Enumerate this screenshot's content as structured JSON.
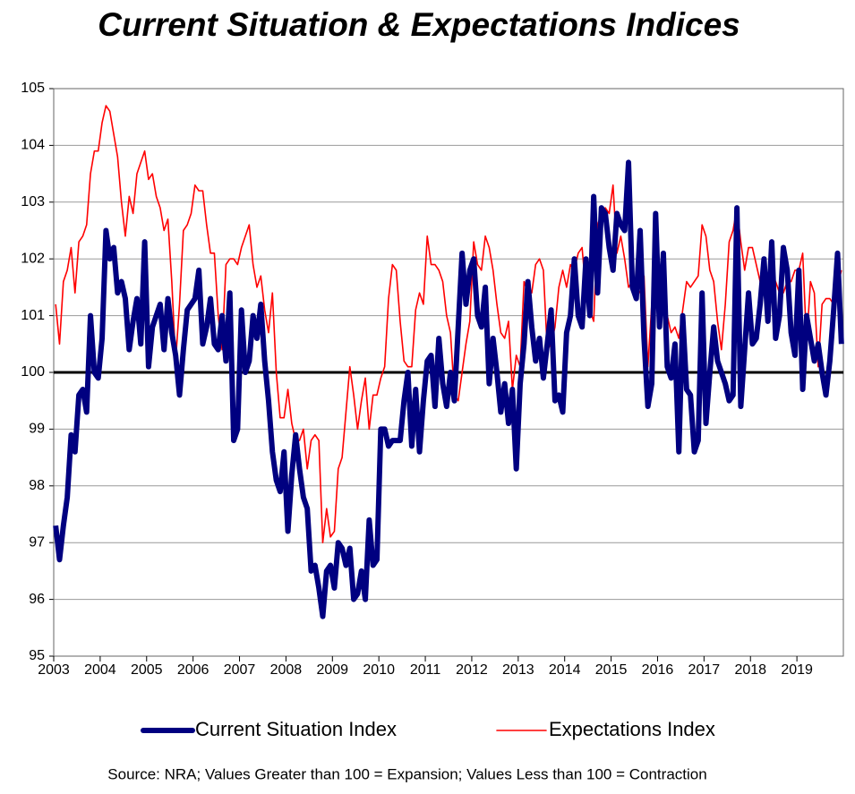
{
  "chart_data": {
    "type": "line",
    "title": "Current Situation & Expectations Indices",
    "source": "Source: NRA; Values Greater than 100 = Expansion; Values Less than 100 = Contraction",
    "categories": [
      "2003",
      null,
      null,
      null,
      null,
      null,
      null,
      null,
      null,
      null,
      null,
      null,
      "2004",
      null,
      null,
      null,
      null,
      null,
      null,
      null,
      null,
      null,
      null,
      null,
      "2005",
      null,
      null,
      null,
      null,
      null,
      null,
      null,
      null,
      null,
      null,
      null,
      "2006",
      null,
      null,
      null,
      null,
      null,
      null,
      null,
      null,
      null,
      null,
      null,
      "2007",
      null,
      null,
      null,
      null,
      null,
      null,
      null,
      null,
      null,
      null,
      null,
      "2008",
      null,
      null,
      null,
      null,
      null,
      null,
      null,
      null,
      null,
      null,
      null,
      "2009",
      null,
      null,
      null,
      null,
      null,
      null,
      null,
      null,
      null,
      null,
      null,
      "2010",
      null,
      null,
      null,
      null,
      null,
      null,
      null,
      null,
      null,
      null,
      null,
      "2011",
      null,
      null,
      null,
      null,
      null,
      null,
      null,
      null,
      null,
      null,
      null,
      "2012",
      null,
      null,
      null,
      null,
      null,
      null,
      null,
      null,
      null,
      null,
      null,
      "2013",
      null,
      null,
      null,
      null,
      null,
      null,
      null,
      null,
      null,
      null,
      null,
      "2014",
      null,
      null,
      null,
      null,
      null,
      null,
      null,
      null,
      null,
      null,
      null,
      "2015",
      null,
      null,
      null,
      null,
      null,
      null,
      null,
      null,
      null,
      null,
      null,
      "2016",
      null,
      null,
      null,
      null,
      null,
      null,
      null,
      null,
      null,
      null,
      null,
      "2017",
      null,
      null,
      null,
      null,
      null,
      null,
      null,
      null,
      null,
      null,
      null,
      "2018",
      null,
      null,
      null,
      null,
      null,
      null,
      null,
      null,
      null,
      null,
      null,
      "2019",
      null,
      null,
      null,
      null,
      null,
      null,
      null,
      null,
      null,
      null,
      null
    ],
    "series": [
      {
        "name": "Current Situation Index",
        "color": "#000080",
        "width": 6,
        "values": [
          97.3,
          96.7,
          97.3,
          97.8,
          98.9,
          98.6,
          99.6,
          99.7,
          99.3,
          101.0,
          100.0,
          99.9,
          100.6,
          102.5,
          102.0,
          102.2,
          101.4,
          101.6,
          101.3,
          100.4,
          100.9,
          101.3,
          100.5,
          102.3,
          100.1,
          100.8,
          101.0,
          101.2,
          100.4,
          101.3,
          100.7,
          100.3,
          99.6,
          100.4,
          101.1,
          101.2,
          101.3,
          101.8,
          100.5,
          100.8,
          101.3,
          100.5,
          100.4,
          101.0,
          100.2,
          101.4,
          98.8,
          99.0,
          101.1,
          100.0,
          100.2,
          101.0,
          100.6,
          101.2,
          100.2,
          99.5,
          98.6,
          98.1,
          97.9,
          98.6,
          97.2,
          98.2,
          98.9,
          98.3,
          97.8,
          97.6,
          96.5,
          96.6,
          96.2,
          95.7,
          96.5,
          96.6,
          96.2,
          97.0,
          96.9,
          96.6,
          96.9,
          96.0,
          96.1,
          96.5,
          96.0,
          97.4,
          96.6,
          96.7,
          99.0,
          99.0,
          98.7,
          98.8,
          98.8,
          98.8,
          99.5,
          100.0,
          98.7,
          99.7,
          98.6,
          99.5,
          100.2,
          100.3,
          99.4,
          100.6,
          99.8,
          99.4,
          100.0,
          99.5,
          100.8,
          102.1,
          101.2,
          101.8,
          102.0,
          101.0,
          100.8,
          101.5,
          99.8,
          100.6,
          100.0,
          99.3,
          99.8,
          99.1,
          99.7,
          98.3,
          99.8,
          100.5,
          101.6,
          100.8,
          100.2,
          100.6,
          99.9,
          100.5,
          101.1,
          99.5,
          99.6,
          99.3,
          100.7,
          101.0,
          102.0,
          101.0,
          100.8,
          102.0,
          101.0,
          103.1,
          101.4,
          102.9,
          102.8,
          102.2,
          101.8,
          102.8,
          102.6,
          102.5,
          103.7,
          101.5,
          101.3,
          102.5,
          100.6,
          99.4,
          99.8,
          102.8,
          100.8,
          102.1,
          100.1,
          99.9,
          100.5,
          98.6,
          101.0,
          99.7,
          99.6,
          98.6,
          98.8,
          101.4,
          99.1,
          100.0,
          100.8,
          100.2,
          100.0,
          99.8,
          99.5,
          99.6,
          102.9,
          99.4,
          100.4,
          101.4,
          100.5,
          100.6,
          101.2,
          102.0,
          100.9,
          102.3,
          100.6,
          101.0,
          102.2,
          101.8,
          100.7,
          100.3,
          101.8,
          99.7,
          101.0,
          100.6,
          100.2,
          100.5,
          100.0,
          99.6,
          100.2,
          101.1,
          102.1,
          100.5
        ]
      },
      {
        "name": "Expectations Index",
        "color": "#ff0000",
        "width": 1.6,
        "values": [
          101.2,
          100.5,
          101.6,
          101.8,
          102.2,
          101.4,
          102.3,
          102.4,
          102.6,
          103.5,
          103.9,
          103.9,
          104.4,
          104.7,
          104.6,
          104.2,
          103.8,
          103.0,
          102.4,
          103.1,
          102.8,
          103.5,
          103.7,
          103.9,
          103.4,
          103.5,
          103.1,
          102.9,
          102.5,
          102.7,
          101.6,
          100.2,
          101.2,
          102.5,
          102.6,
          102.8,
          103.3,
          103.2,
          103.2,
          102.6,
          102.1,
          102.1,
          101.0,
          100.4,
          101.9,
          102.0,
          102.0,
          101.9,
          102.2,
          102.4,
          102.6,
          101.9,
          101.5,
          101.7,
          101.1,
          100.7,
          101.4,
          100.0,
          99.2,
          99.2,
          99.7,
          99.1,
          98.8,
          98.8,
          99.0,
          98.3,
          98.8,
          98.9,
          98.8,
          97.0,
          97.6,
          97.1,
          97.2,
          98.3,
          98.5,
          99.3,
          100.1,
          99.6,
          99.0,
          99.5,
          99.9,
          99.0,
          99.6,
          99.6,
          99.9,
          100.1,
          101.3,
          101.9,
          101.8,
          100.9,
          100.2,
          100.1,
          100.1,
          101.1,
          101.4,
          101.2,
          102.4,
          101.9,
          101.9,
          101.8,
          101.6,
          101.0,
          100.7,
          99.6,
          99.5,
          100.0,
          100.5,
          100.9,
          102.3,
          101.9,
          101.8,
          102.4,
          102.2,
          101.8,
          101.2,
          100.7,
          100.6,
          100.9,
          99.7,
          100.3,
          100.1,
          101.6,
          101.4,
          101.4,
          101.9,
          102.0,
          101.8,
          100.4,
          100.5,
          100.8,
          101.5,
          101.8,
          101.5,
          101.9,
          101.8,
          102.1,
          102.2,
          101.4,
          101.1,
          100.9,
          102.6,
          102.8,
          102.9,
          102.8,
          103.3,
          102.1,
          102.4,
          102.0,
          101.5,
          101.6,
          101.5,
          101.4,
          101.7,
          100.1,
          101.2,
          101.5,
          101.4,
          101.2,
          101.0,
          100.7,
          100.8,
          100.6,
          101.1,
          101.6,
          101.5,
          101.6,
          101.7,
          102.6,
          102.4,
          101.8,
          101.6,
          100.9,
          100.4,
          101.2,
          102.3,
          102.5,
          102.9,
          102.3,
          101.8,
          102.2,
          102.2,
          101.9,
          101.6,
          101.4,
          101.3,
          101.7,
          101.6,
          101.4,
          101.4,
          101.6,
          101.6,
          101.8,
          101.8,
          102.1,
          100.5,
          101.6,
          101.4,
          100.1,
          101.2,
          101.3,
          101.3,
          101.2,
          101.5,
          101.8
        ]
      }
    ],
    "ylim": [
      95,
      105
    ],
    "yticks": [
      95,
      96,
      97,
      98,
      99,
      100,
      101,
      102,
      103,
      104,
      105
    ],
    "reference_line": 100,
    "grid": true,
    "legend": "bottom"
  }
}
